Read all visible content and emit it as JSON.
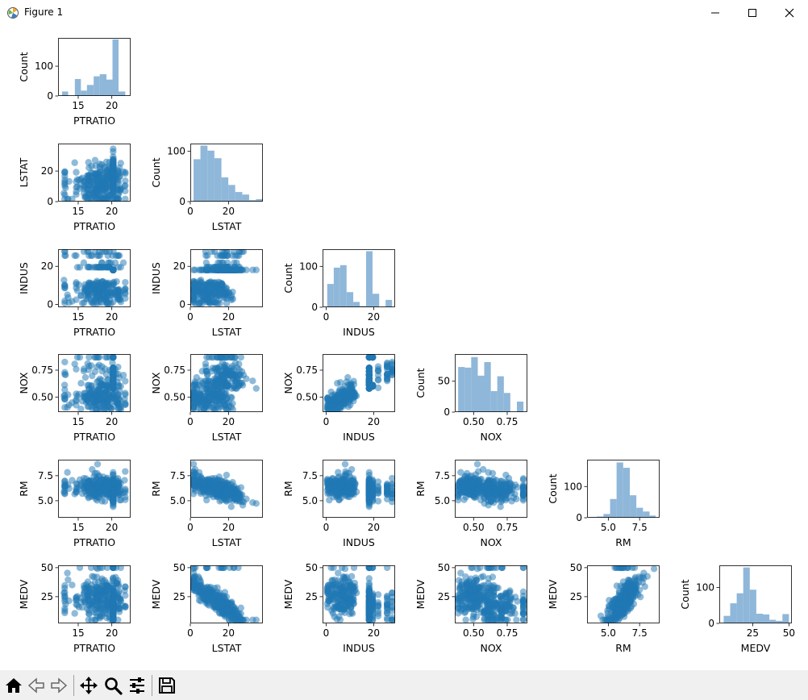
{
  "window": {
    "title": "Figure 1",
    "title_icon": "matplotlib-icon",
    "controls": [
      "minimize-icon",
      "maximize-icon",
      "close-icon"
    ]
  },
  "toolbar": {
    "buttons": [
      "home-icon",
      "back-icon",
      "forward-icon",
      "pan-icon",
      "zoom-icon",
      "configure-subplots-icon",
      "save-icon"
    ]
  },
  "colors": {
    "scatter": "#1f77b4",
    "hist": "#8fb7d9"
  },
  "chart_data": {
    "type": "scatter",
    "layout": "lower-triangular pairplot, 6 x 6 grid, histograms on diagonal",
    "variables": [
      "PTRATIO",
      "LSTAT",
      "INDUS",
      "NOX",
      "RM",
      "MEDV"
    ],
    "axes": {
      "PTRATIO": {
        "lim": [
          12,
          22.8
        ],
        "ticks": [
          15,
          20
        ]
      },
      "LSTAT": {
        "lim": [
          0,
          38
        ],
        "ticks": [
          0,
          20
        ]
      },
      "INDUS": {
        "lim": [
          -1.5,
          29
        ],
        "ticks": [
          0,
          20
        ]
      },
      "NOX": {
        "lim": [
          0.36,
          0.9
        ],
        "ticks": [
          0.5,
          0.75
        ]
      },
      "RM": {
        "lim": [
          3.3,
          9.1
        ],
        "ticks": [
          5.0,
          7.5
        ]
      },
      "MEDV": {
        "lim": [
          2,
          52
        ],
        "ticks": [
          25,
          50
        ]
      }
    },
    "tick_labels": {
      "PTRATIO": [
        "15",
        "20"
      ],
      "LSTAT": [
        "0",
        "20"
      ],
      "INDUS": [
        "0",
        "20"
      ],
      "NOX": [
        "0.50",
        "0.75"
      ],
      "RM": [
        "5.0",
        "7.5"
      ],
      "MEDV": [
        "25",
        "50"
      ]
    },
    "hist_ylabel": "Count",
    "histograms": {
      "PTRATIO": {
        "bins": [
          12.6,
          13.5,
          14.5,
          15.4,
          16.3,
          17.3,
          18.2,
          19.2,
          20.1,
          21.0,
          22.0
        ],
        "counts": [
          15,
          0,
          57,
          18,
          37,
          66,
          73,
          55,
          190,
          15
        ],
        "ylim": [
          0,
          195
        ],
        "yticks": [
          0,
          100
        ]
      },
      "LSTAT": {
        "bins": [
          1.7,
          5.3,
          9.0,
          12.6,
          16.3,
          19.9,
          23.5,
          27.2,
          30.8,
          34.4,
          38.0
        ],
        "counts": [
          84,
          111,
          101,
          86,
          48,
          33,
          19,
          14,
          3,
          5
        ],
        "ylim": [
          0,
          115
        ],
        "yticks": [
          0,
          100
        ]
      },
      "INDUS": {
        "bins": [
          0.46,
          3.2,
          5.9,
          8.6,
          11.4,
          14.1,
          16.8,
          19.5,
          22.3,
          25.0,
          27.7
        ],
        "counts": [
          57,
          97,
          103,
          37,
          13,
          3,
          137,
          33,
          1,
          18
        ],
        "ylim": [
          0,
          142
        ],
        "yticks": [
          0,
          100
        ]
      },
      "NOX": {
        "bins": [
          0.385,
          0.434,
          0.482,
          0.531,
          0.579,
          0.628,
          0.676,
          0.725,
          0.773,
          0.822,
          0.871
        ],
        "counts": [
          73,
          72,
          89,
          59,
          81,
          34,
          58,
          31,
          0,
          17
        ],
        "ylim": [
          0,
          94
        ],
        "yticks": [
          0,
          50
        ]
      },
      "RM": {
        "bins": [
          3.56,
          4.08,
          4.61,
          5.14,
          5.66,
          6.19,
          6.72,
          7.24,
          7.77,
          8.3,
          8.78
        ],
        "counts": [
          2,
          4,
          12,
          60,
          177,
          160,
          72,
          32,
          20,
          7
        ],
        "ylim": [
          0,
          186
        ],
        "yticks": [
          0,
          100
        ]
      },
      "MEDV": {
        "bins": [
          5,
          9.5,
          14,
          18.5,
          23,
          27.5,
          32,
          36.5,
          41,
          45.5,
          50
        ],
        "counts": [
          21,
          56,
          84,
          156,
          94,
          27,
          25,
          10,
          7,
          26
        ],
        "ylim": [
          0,
          162
        ],
        "yticks": [
          0,
          100
        ]
      }
    },
    "xlabels": [
      "PTRATIO",
      "LSTAT",
      "INDUS",
      "NOX",
      "RM",
      "MEDV"
    ],
    "ylabels": [
      "PTRATIO",
      "LSTAT",
      "INDUS",
      "NOX",
      "RM",
      "MEDV"
    ]
  }
}
